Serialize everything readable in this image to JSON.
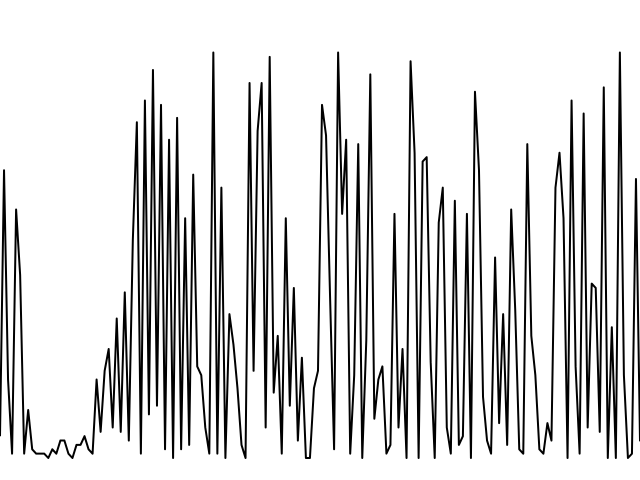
{
  "chart_data": {
    "type": "line",
    "title": "",
    "xlabel": "",
    "ylabel": "",
    "grid": false,
    "legend": "none",
    "xlim": [
      0,
      159
    ],
    "ylim": [
      0,
      1
    ],
    "line_color": "#000000",
    "series": [
      {
        "values": [
          0.05,
          0.66,
          0.18,
          0.01,
          0.57,
          0.42,
          0.01,
          0.11,
          0.02,
          0.01,
          0.01,
          0.01,
          0.0,
          0.02,
          0.01,
          0.04,
          0.04,
          0.01,
          0.0,
          0.03,
          0.03,
          0.05,
          0.02,
          0.01,
          0.18,
          0.06,
          0.2,
          0.25,
          0.07,
          0.32,
          0.06,
          0.38,
          0.04,
          0.5,
          0.77,
          0.01,
          0.82,
          0.1,
          0.89,
          0.12,
          0.81,
          0.02,
          0.73,
          0.0,
          0.78,
          0.02,
          0.55,
          0.03,
          0.65,
          0.21,
          0.19,
          0.07,
          0.01,
          0.93,
          0.01,
          0.62,
          0.0,
          0.33,
          0.26,
          0.16,
          0.03,
          0.0,
          0.86,
          0.2,
          0.75,
          0.86,
          0.07,
          0.92,
          0.15,
          0.28,
          0.01,
          0.55,
          0.12,
          0.39,
          0.04,
          0.23,
          0.0,
          0.0,
          0.16,
          0.2,
          0.81,
          0.74,
          0.37,
          0.02,
          0.93,
          0.56,
          0.73,
          0.01,
          0.19,
          0.72,
          0.0,
          0.27,
          0.88,
          0.09,
          0.18,
          0.21,
          0.01,
          0.03,
          0.56,
          0.07,
          0.25,
          0.0,
          0.91,
          0.7,
          0.0,
          0.68,
          0.69,
          0.22,
          0.0,
          0.54,
          0.62,
          0.07,
          0.01,
          0.59,
          0.03,
          0.05,
          0.56,
          0.0,
          0.84,
          0.66,
          0.14,
          0.04,
          0.01,
          0.46,
          0.08,
          0.33,
          0.03,
          0.57,
          0.34,
          0.02,
          0.01,
          0.72,
          0.28,
          0.19,
          0.02,
          0.01,
          0.08,
          0.04,
          0.62,
          0.7,
          0.55,
          0.0,
          0.82,
          0.21,
          0.01,
          0.79,
          0.07,
          0.4,
          0.39,
          0.06,
          0.85,
          0.0,
          0.3,
          0.0,
          0.93,
          0.19,
          0.0,
          0.01,
          0.64,
          0.04,
          0.05,
          0.07
        ]
      }
    ]
  }
}
